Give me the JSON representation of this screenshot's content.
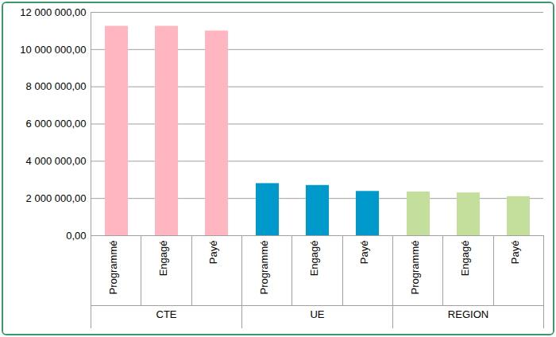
{
  "chart_data": {
    "type": "bar",
    "categories": [
      "Programmé",
      "Engagé",
      "Payé"
    ],
    "series": [
      {
        "name": "CTE",
        "color": "#ffb6c1",
        "values": [
          11250000,
          11250000,
          11000000
        ]
      },
      {
        "name": "UE",
        "color": "#0099cc",
        "values": [
          2800000,
          2700000,
          2380000
        ]
      },
      {
        "name": "REGION",
        "color": "#c4df9b",
        "values": [
          2350000,
          2300000,
          2100000
        ]
      }
    ],
    "ylim": [
      0,
      12000000
    ],
    "yticks": [
      {
        "value": 0,
        "label": "0,00"
      },
      {
        "value": 2000000,
        "label": "2 000 000,00"
      },
      {
        "value": 4000000,
        "label": "4 000 000,00"
      },
      {
        "value": 6000000,
        "label": "6 000 000,00"
      },
      {
        "value": 8000000,
        "label": "8 000 000,00"
      },
      {
        "value": 10000000,
        "label": "10 000 000,00"
      },
      {
        "value": 12000000,
        "label": "12 000 000,00"
      }
    ],
    "grid": true
  }
}
